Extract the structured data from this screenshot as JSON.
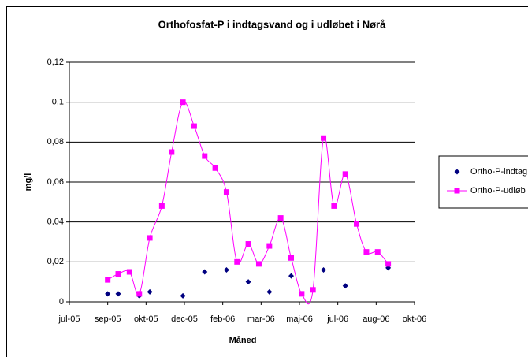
{
  "chart_data": {
    "type": "scatter",
    "title": "Orthofosfat-P i indtagsvand og i udløbet i Nørå",
    "x_label": "Måned",
    "y_label": "mg/l",
    "xlim": [
      38553,
      39012
    ],
    "xticks": [
      {
        "value": 38553,
        "label": "jul-05"
      },
      {
        "value": 38604,
        "label": "sep-05"
      },
      {
        "value": 38655,
        "label": "okt-05"
      },
      {
        "value": 38706,
        "label": "dec-05"
      },
      {
        "value": 38757,
        "label": "feb-06"
      },
      {
        "value": 38808,
        "label": "mar-06"
      },
      {
        "value": 38859,
        "label": "maj-06"
      },
      {
        "value": 38910,
        "label": "jul-06"
      },
      {
        "value": 38961,
        "label": "aug-06"
      },
      {
        "value": 39012,
        "label": "okt-06"
      }
    ],
    "ylim": [
      0,
      0.12
    ],
    "yticks": [
      0,
      {
        "value": 0.02,
        "label": "0,02"
      },
      {
        "value": 0.04,
        "label": "0,04"
      },
      {
        "value": 0.06,
        "label": "0,06"
      },
      {
        "value": 0.08,
        "label": "0,08"
      },
      {
        "value": 0.1,
        "label": "0,1"
      },
      {
        "value": 0.12,
        "label": "0,12"
      }
    ],
    "grid": true,
    "legend": "right",
    "series": [
      {
        "name": "Ortho-P-indtag",
        "color": "#000080",
        "marker": "diamond",
        "line": false,
        "x": [
          38604,
          38618,
          38646,
          38660,
          38704,
          38733,
          38762,
          38791,
          38819,
          38848,
          38891,
          38920,
          38977
        ],
        "values": [
          0.004,
          0.004,
          0.003,
          0.005,
          0.003,
          0.015,
          0.016,
          0.01,
          0.005,
          0.013,
          0.016,
          0.008,
          0.017
        ]
      },
      {
        "name": "Ortho-P-udløb",
        "color": "#ff00ff",
        "marker": "square",
        "line": true,
        "x": [
          38604,
          38618,
          38633,
          38646,
          38660,
          38676,
          38689,
          38704,
          38719,
          38733,
          38747,
          38762,
          38776,
          38791,
          38805,
          38819,
          38834,
          38848,
          38862,
          38877,
          38891,
          38905,
          38920,
          38935,
          38948,
          38963,
          38977
        ],
        "values": [
          0.011,
          0.014,
          0.015,
          0.004,
          0.032,
          0.048,
          0.075,
          0.1,
          0.088,
          0.073,
          0.067,
          0.055,
          0.02,
          0.029,
          0.019,
          0.028,
          0.042,
          0.022,
          0.004,
          0.006,
          0.082,
          0.048,
          0.064,
          0.039,
          0.025,
          0.025,
          0.019
        ]
      }
    ]
  }
}
